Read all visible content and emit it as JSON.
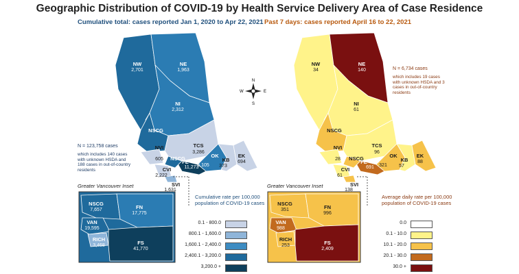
{
  "title": "Geographic Distribution of COVID-19 by Health Service Delivery Area of Case Residence",
  "left": {
    "subtitle": "Cumulative total: cases reported Jan 1, 2020 to Apr 22, 2021",
    "note_total": "N = 123,758 cases",
    "note_detail": "which includes 140 cases with unknown HSDA and 188 cases in out-of-country residents",
    "regions": [
      {
        "name": "NW",
        "value": "2,701"
      },
      {
        "name": "NE",
        "value": "1,963"
      },
      {
        "name": "NI",
        "value": "2,312"
      },
      {
        "name": "NSCG",
        "value": ""
      },
      {
        "name": "TCS",
        "value": "3,286"
      },
      {
        "name": "NVI",
        "value": "605"
      },
      {
        "name": "NSCG",
        "value": ""
      },
      {
        "name": "OK",
        "value": "6,105"
      },
      {
        "name": "KB",
        "value": "373"
      },
      {
        "name": "EK",
        "value": "694"
      },
      {
        "name": "CVI",
        "value": "2,222"
      },
      {
        "name": "FE",
        "value": "11,273"
      },
      {
        "name": "SVI",
        "value": "1,631"
      }
    ],
    "inset_title": "Greater Vancouver Inset",
    "inset_regions": [
      {
        "name": "NSCG",
        "value": "7,657"
      },
      {
        "name": "FN",
        "value": "17,775"
      },
      {
        "name": "VAN",
        "value": "19,595"
      },
      {
        "name": "RICH",
        "value": "3,468"
      },
      {
        "name": "FS",
        "value": "41,770"
      }
    ],
    "legend_title": "Cumulative rate per 100,000 population of COVID-19 cases",
    "legend": [
      {
        "label": "0.1 - 800.0",
        "color": "#c8d3e6"
      },
      {
        "label": "800.1 - 1,600.0",
        "color": "#8fb5d9"
      },
      {
        "label": "1,600.1 - 2,400.0",
        "color": "#3d8cc2"
      },
      {
        "label": "2,400.1 - 3,200.0",
        "color": "#1f6a9c"
      },
      {
        "label": "3,200.0 +",
        "color": "#0e3f5c"
      }
    ]
  },
  "right": {
    "subtitle": "Past 7 days: cases reported April 16 to 22, 2021",
    "note_total": "N = 6,734 cases",
    "note_detail": "which includes 19 cases with unknown HSDA and 3 cases in out-of-country residents",
    "regions": [
      {
        "name": "NW",
        "value": "34"
      },
      {
        "name": "NE",
        "value": "140"
      },
      {
        "name": "NI",
        "value": "61"
      },
      {
        "name": "NSCG",
        "value": ""
      },
      {
        "name": "TCS",
        "value": "96"
      },
      {
        "name": "NVI",
        "value": "28"
      },
      {
        "name": "NSCG",
        "value": ""
      },
      {
        "name": "OK",
        "value": "321"
      },
      {
        "name": "KB",
        "value": "57"
      },
      {
        "name": "EK",
        "value": "88"
      },
      {
        "name": "CVI",
        "value": "61"
      },
      {
        "name": "FE",
        "value": "691"
      },
      {
        "name": "SVI",
        "value": "138"
      }
    ],
    "inset_title": "Greater Vancouver Inset",
    "inset_regions": [
      {
        "name": "NSCG",
        "value": "351"
      },
      {
        "name": "FN",
        "value": "996"
      },
      {
        "name": "VAN",
        "value": "988"
      },
      {
        "name": "RICH",
        "value": "253"
      },
      {
        "name": "FS",
        "value": "2,409"
      }
    ],
    "legend_title": "Average daily rate per 100,000 population of COVID-19 cases",
    "legend": [
      {
        "label": "0.0",
        "color": "#ffffff"
      },
      {
        "label": "0.1 - 10.0",
        "color": "#fff38a"
      },
      {
        "label": "10.1 - 20.0",
        "color": "#f6c24a"
      },
      {
        "label": "20.1 - 30.0",
        "color": "#c26a1e"
      },
      {
        "label": "30.0 +",
        "color": "#7a1010"
      }
    ]
  },
  "compass": {
    "n": "N",
    "s": "S",
    "e": "E",
    "w": "W"
  },
  "colors": {
    "title": "#222222",
    "left_accent": "#1f4f7c",
    "right_accent": "#b85a0f"
  }
}
